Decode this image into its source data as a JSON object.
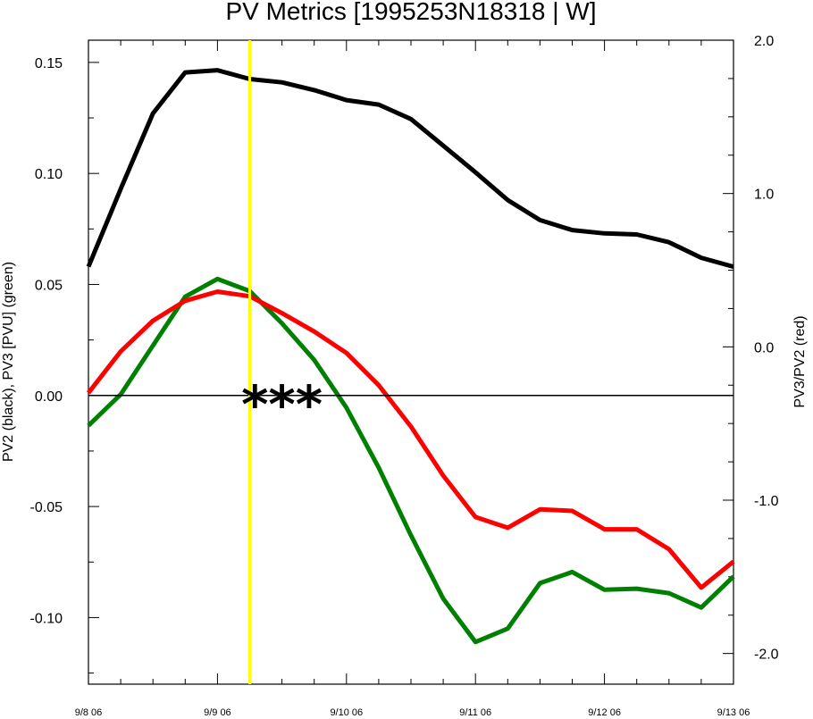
{
  "chart_data": {
    "type": "line",
    "title": "PV Metrics [1995253N18318 | W]",
    "ylabel_left": "PV2 (black), PV3 [PVU] (green)",
    "ylabel_right": "PV3/PV2 (red)",
    "x_range": [
      0,
      120
    ],
    "x_ticks": [
      {
        "value": 0,
        "label": "9/8 06"
      },
      {
        "value": 24,
        "label": "9/9 06"
      },
      {
        "value": 48,
        "label": "9/10 06"
      },
      {
        "value": 72,
        "label": "9/11 06"
      },
      {
        "value": 96,
        "label": "9/12 06"
      },
      {
        "value": 120,
        "label": "9/13 06"
      }
    ],
    "y_left_range": [
      -0.13,
      0.16
    ],
    "y_left_ticks": [
      {
        "value": 0.15,
        "label": "0.15"
      },
      {
        "value": 0.1,
        "label": "0.10"
      },
      {
        "value": 0.05,
        "label": "0.05"
      },
      {
        "value": 0.0,
        "label": "0.00"
      },
      {
        "value": -0.05,
        "label": "-0.05"
      },
      {
        "value": -0.1,
        "label": "-0.10"
      }
    ],
    "y_right_range": [
      -2.2,
      2.0
    ],
    "y_right_ticks": [
      {
        "value": 2.0,
        "label": "2.0"
      },
      {
        "value": 1.0,
        "label": "1.0"
      },
      {
        "value": 0.0,
        "label": "0.0"
      },
      {
        "value": -1.0,
        "label": "-1.0"
      },
      {
        "value": -2.0,
        "label": "-2.0"
      }
    ],
    "x": [
      0,
      6,
      12,
      18,
      24,
      30,
      36,
      42,
      48,
      54,
      60,
      66,
      72,
      78,
      84,
      90,
      96,
      102,
      108,
      114,
      120
    ],
    "series": [
      {
        "axis": "left",
        "color": "#000000",
        "values": [
          0.058,
          0.093,
          0.127,
          0.1455,
          0.1465,
          0.1425,
          0.141,
          0.1375,
          0.133,
          0.131,
          0.1245,
          0.1125,
          0.1005,
          0.088,
          0.079,
          0.0745,
          0.073,
          0.0725,
          0.069,
          0.062,
          0.058
        ]
      },
      {
        "axis": "left",
        "color": "#008000",
        "values": [
          -0.0135,
          0.0005,
          0.0225,
          0.0445,
          0.0525,
          0.047,
          0.0325,
          0.016,
          -0.0055,
          -0.0325,
          -0.063,
          -0.0915,
          -0.111,
          -0.105,
          -0.0845,
          -0.0795,
          -0.0875,
          -0.087,
          -0.089,
          -0.0955,
          -0.0815
        ]
      },
      {
        "axis": "right",
        "color": "#ff0000",
        "values": [
          -0.3,
          -0.03,
          0.17,
          0.3,
          0.36,
          0.33,
          0.22,
          0.1,
          -0.04,
          -0.25,
          -0.52,
          -0.84,
          -1.11,
          -1.18,
          -1.06,
          -1.07,
          -1.19,
          -1.19,
          -1.32,
          -1.57,
          -1.4
        ]
      }
    ],
    "zero_line": {
      "axis": "left",
      "value": 0.0,
      "color": "#000000"
    },
    "vertical_marker": {
      "x": 6,
      "note_x_is_offset": false,
      "color": "#ffff00",
      "x_value": 30
    },
    "annotation": {
      "text": "***",
      "x": 36,
      "y": 0.0
    }
  }
}
